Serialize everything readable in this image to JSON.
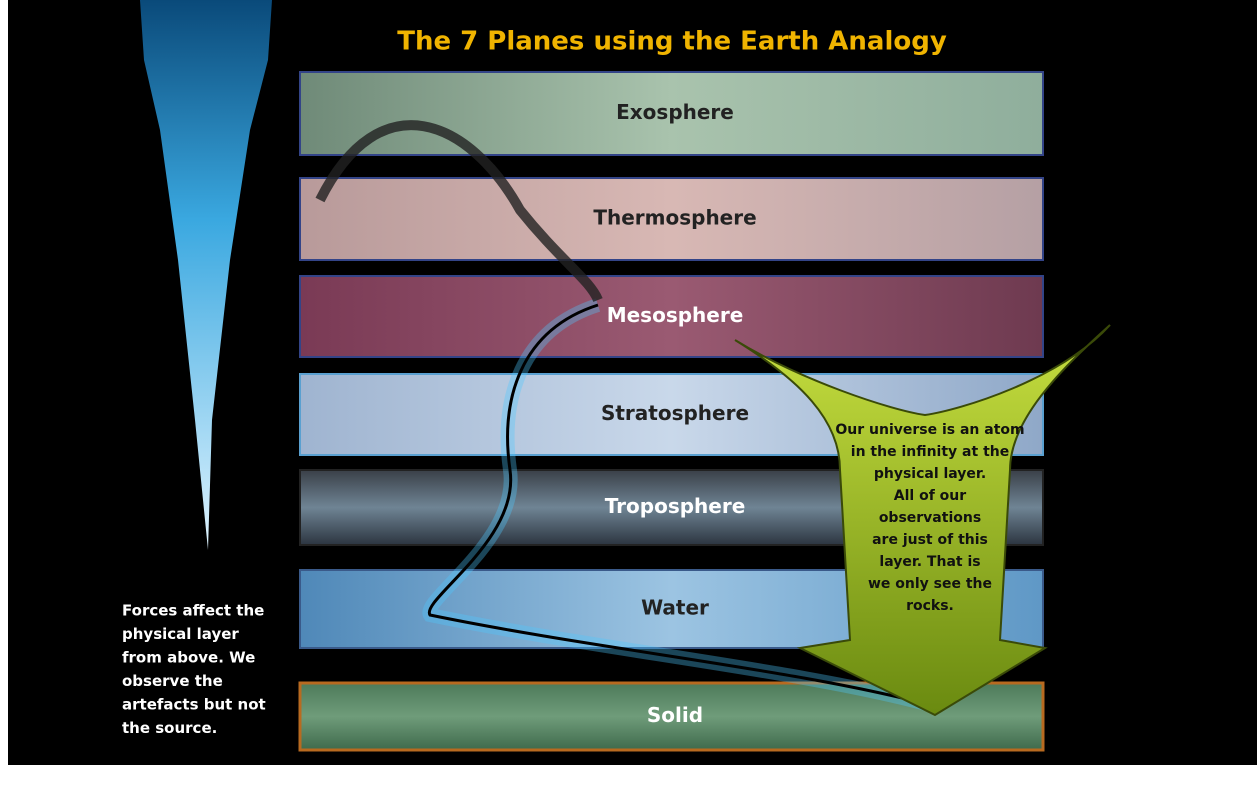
{
  "title": "The 7 Planes using the Earth Analogy",
  "layers": [
    {
      "label": "Exosphere"
    },
    {
      "label": "Thermosphere"
    },
    {
      "label": "Mesosphere"
    },
    {
      "label": "Stratosphere"
    },
    {
      "label": "Troposphere"
    },
    {
      "label": "Water"
    },
    {
      "label": "Solid"
    }
  ],
  "left_note": [
    "Forces  affect the",
    "physical layer",
    "from above.   We",
    "observe the",
    "artefacts but not",
    "the source."
  ],
  "arrow_note": [
    "Our universe is an atom",
    "in the infinity at the",
    "physical layer.",
    "All of our",
    "observations",
    "are just of this",
    "layer.  That is",
    "we only see the",
    "rocks."
  ]
}
